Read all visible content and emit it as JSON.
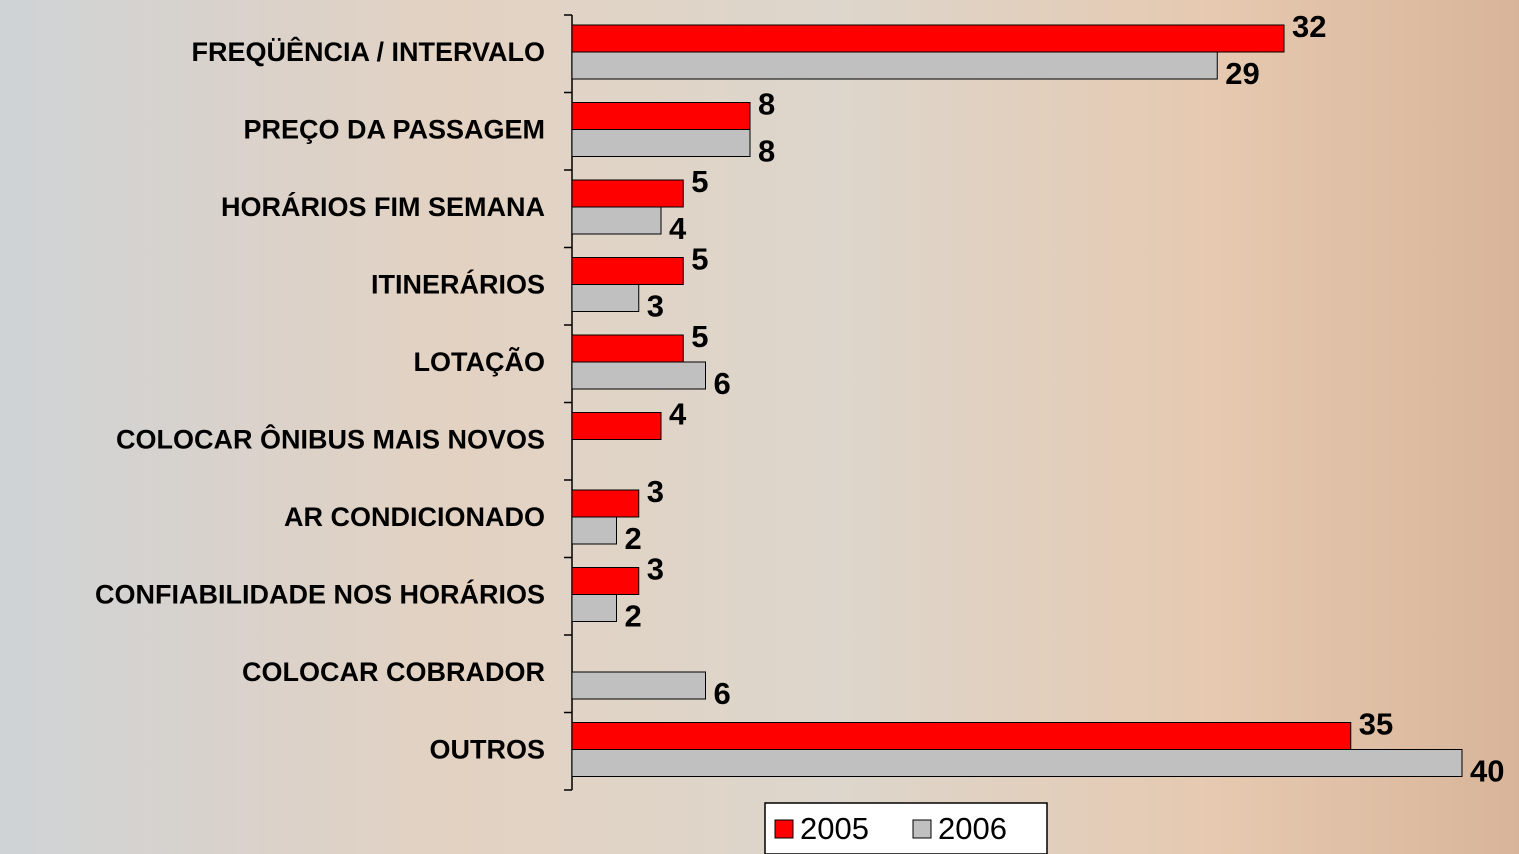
{
  "chart_data": {
    "type": "barh",
    "categories": [
      "FREQÜÊNCIA / INTERVALO",
      "PREÇO DA PASSAGEM",
      "HORÁRIOS FIM SEMANA",
      "ITINERÁRIOS",
      "LOTAÇÃO",
      "COLOCAR  ÔNIBUS MAIS NOVOS",
      "AR CONDICIONADO",
      "CONFIABILIDADE NOS HORÁRIOS",
      "COLOCAR COBRADOR",
      "OUTROS"
    ],
    "series": [
      {
        "name": "2005",
        "color": "#ff0000",
        "values": [
          32,
          8,
          5,
          5,
          5,
          4,
          3,
          3,
          null,
          35
        ]
      },
      {
        "name": "2006",
        "color": "#c0c0c0",
        "values": [
          29,
          8,
          4,
          3,
          6,
          null,
          2,
          2,
          6,
          40
        ]
      }
    ],
    "xlim": [
      0,
      40
    ],
    "legend": "bottom"
  }
}
